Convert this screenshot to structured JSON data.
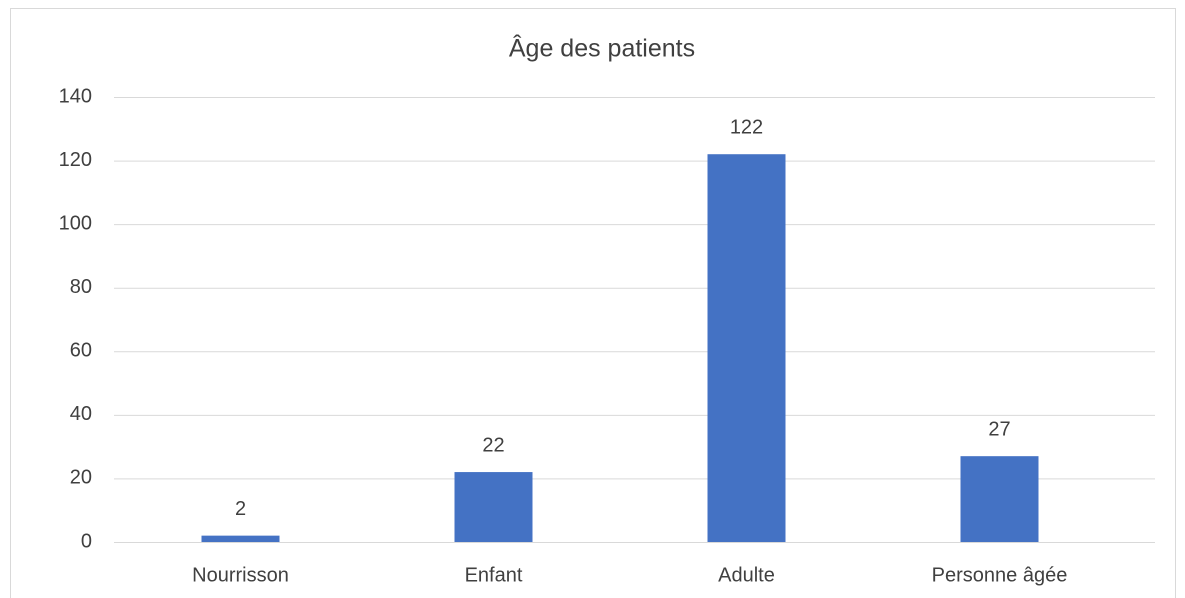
{
  "chart_data": {
    "type": "bar",
    "title": "Âge des patients",
    "categories": [
      "Nourrisson",
      "Enfant",
      "Adulte",
      "Personne âgée"
    ],
    "values": [
      2,
      22,
      122,
      27
    ],
    "color": "#4472c4",
    "ylim": [
      0,
      140
    ],
    "yticks": [
      0,
      20,
      40,
      60,
      80,
      100,
      120,
      140
    ],
    "grid": true,
    "data_labels": true
  }
}
